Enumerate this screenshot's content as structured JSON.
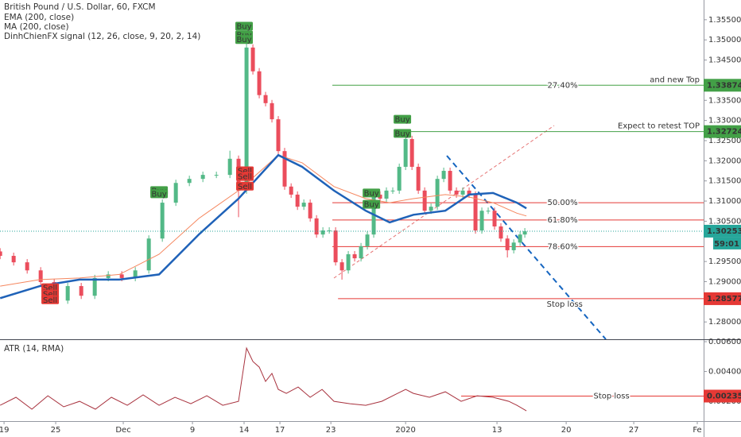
{
  "chart_data": [
    {
      "type": "candlestick",
      "title": "British Pound / U.S. Dollar, 60, FXCM",
      "signal_name": "DinhChienFX signal (12, 26, close, 9, 20, 2, 14)",
      "xlim": [
        -0.3,
        51.76
      ],
      "ylim": [
        1.2757,
        1.3599
      ],
      "yticks": [
        {
          "value": 1.355,
          "label": "1.35500"
        },
        {
          "value": 1.35,
          "label": "1.35000"
        },
        {
          "value": 1.345,
          "label": "1.34500"
        },
        {
          "value": 1.335,
          "label": "1.33500"
        },
        {
          "value": 1.33,
          "label": "1.33000"
        },
        {
          "value": 1.325,
          "label": "1.32500"
        },
        {
          "value": 1.32,
          "label": "1.32000"
        },
        {
          "value": 1.315,
          "label": "1.31500"
        },
        {
          "value": 1.31,
          "label": "1.31000"
        },
        {
          "value": 1.305,
          "label": "1.30500"
        },
        {
          "value": 1.295,
          "label": "1.29500"
        },
        {
          "value": 1.29,
          "label": "1.29000"
        },
        {
          "value": 1.28,
          "label": "1.28000"
        }
      ],
      "candle_colors": {
        "up": "#53b987",
        "down": "#eb4d5c"
      },
      "x": [
        -0.29,
        0.71,
        1.71,
        2.71,
        3.71,
        4.71,
        5.71,
        6.71,
        7.71,
        8.71,
        9.71,
        10.71,
        11.71,
        12.71,
        13.71,
        14.71,
        15.71,
        16.71,
        17.35,
        17.94,
        18.41,
        18.88,
        19.35,
        19.82,
        20.29,
        20.76,
        21.24,
        21.71,
        22.18,
        22.65,
        23.12,
        23.59,
        24.06,
        24.53,
        25,
        25.47,
        25.94,
        26.41,
        26.88,
        27.35,
        27.82,
        28.29,
        28.76,
        29.24,
        29.71,
        30.18,
        30.65,
        31.12,
        31.59,
        32.06,
        32.53,
        33,
        33.47,
        33.94,
        34.41,
        34.88,
        35.35,
        35.82,
        36.29,
        36.76,
        37.24,
        37.71,
        38.18,
        38.53
      ],
      "open": [
        1.2975,
        1.2964,
        1.2948,
        1.2928,
        1.2899,
        1.2853,
        1.2889,
        1.2865,
        1.2909,
        1.2918,
        1.2909,
        1.2928,
        1.3007,
        1.3096,
        1.3145,
        1.3155,
        1.3165,
        1.3165,
        1.3205,
        1.3126,
        1.3481,
        1.3422,
        1.3363,
        1.3343,
        1.3303,
        1.3224,
        1.3136,
        1.3116,
        1.3086,
        1.3096,
        1.3057,
        1.3017,
        1.3027,
        1.3027,
        1.2948,
        1.2928,
        1.2968,
        1.2958,
        1.2988,
        1.3017,
        1.3116,
        1.3106,
        1.3126,
        1.3126,
        1.3185,
        1.3254,
        1.3185,
        1.3126,
        1.3076,
        1.3086,
        1.3155,
        1.3175,
        1.3126,
        1.3116,
        1.3126,
        1.3116,
        1.3027,
        1.3076,
        1.3076,
        1.3037,
        1.3007,
        1.2978,
        1.2997,
        1.3017
      ],
      "high": [
        1.2983,
        1.2972,
        1.2956,
        1.2936,
        1.2907,
        1.2897,
        1.2897,
        1.2917,
        1.2926,
        1.2926,
        1.2936,
        1.3015,
        1.3104,
        1.3153,
        1.3163,
        1.3173,
        1.3173,
        1.3225,
        1.3213,
        1.3493,
        1.3489,
        1.343,
        1.3371,
        1.3351,
        1.3311,
        1.3232,
        1.3144,
        1.3124,
        1.3104,
        1.3104,
        1.3065,
        1.3035,
        1.3035,
        1.3035,
        1.2956,
        1.2976,
        1.2976,
        1.2996,
        1.3025,
        1.3124,
        1.3124,
        1.3134,
        1.3134,
        1.3193,
        1.3275,
        1.3262,
        1.3193,
        1.3134,
        1.3094,
        1.3163,
        1.3183,
        1.3183,
        1.3134,
        1.3134,
        1.3134,
        1.3124,
        1.3084,
        1.3084,
        1.3084,
        1.3045,
        1.3015,
        1.3005,
        1.3025,
        1.3033
      ],
      "low": [
        1.2956,
        1.294,
        1.292,
        1.2891,
        1.2845,
        1.2845,
        1.2857,
        1.2857,
        1.2901,
        1.2901,
        1.2901,
        1.292,
        1.2999,
        1.3088,
        1.3137,
        1.3147,
        1.3157,
        1.3157,
        1.306,
        1.3118,
        1.3414,
        1.3355,
        1.3335,
        1.3295,
        1.3216,
        1.3128,
        1.3108,
        1.3078,
        1.3078,
        1.3049,
        1.3009,
        1.3009,
        1.3019,
        1.294,
        1.2905,
        1.292,
        1.295,
        1.295,
        1.298,
        1.3009,
        1.3098,
        1.3098,
        1.3118,
        1.3118,
        1.3177,
        1.3177,
        1.3118,
        1.3068,
        1.3068,
        1.3078,
        1.3147,
        1.3118,
        1.3108,
        1.3108,
        1.3108,
        1.3019,
        1.3019,
        1.3068,
        1.3029,
        1.2999,
        1.296,
        1.297,
        1.2989,
        1.3009
      ],
      "close": [
        1.2964,
        1.2948,
        1.2928,
        1.2899,
        1.2853,
        1.2889,
        1.2865,
        1.2909,
        1.2918,
        1.2909,
        1.2928,
        1.3007,
        1.3096,
        1.3145,
        1.3155,
        1.3165,
        1.3165,
        1.3205,
        1.3126,
        1.3481,
        1.3422,
        1.3363,
        1.3343,
        1.3303,
        1.3224,
        1.3136,
        1.3116,
        1.3086,
        1.3096,
        1.3057,
        1.3017,
        1.3027,
        1.3027,
        1.2948,
        1.2928,
        1.2968,
        1.2958,
        1.2988,
        1.3017,
        1.3116,
        1.3106,
        1.3126,
        1.3126,
        1.3185,
        1.3254,
        1.3185,
        1.3126,
        1.3076,
        1.3086,
        1.3155,
        1.3175,
        1.3126,
        1.3116,
        1.3126,
        1.3116,
        1.3027,
        1.3076,
        1.3076,
        1.3037,
        1.3007,
        1.2978,
        1.2997,
        1.3017,
        1.3025
      ],
      "series": [
        {
          "name": "EMA (200, close)",
          "color": "#f5875f",
          "width": 1,
          "x": [
            -0.29,
            2.65,
            5.59,
            8.53,
            11.47,
            14.41,
            17.35,
            20.29,
            22.06,
            24.41,
            26.76,
            28.53,
            30.29,
            32.65,
            34.41,
            36.18,
            37.94,
            38.65
          ],
          "values": [
            1.2889,
            1.2905,
            1.2909,
            1.2918,
            1.2968,
            1.3057,
            1.3126,
            1.3214,
            1.3195,
            1.3136,
            1.3106,
            1.3096,
            1.3106,
            1.3116,
            1.311,
            1.3096,
            1.307,
            1.3063
          ]
        },
        {
          "name": "MA (200, close)",
          "color": "#1f62b8",
          "width": 2.5,
          "x": [
            -0.29,
            2.65,
            5.59,
            8.53,
            11.47,
            14.41,
            17.35,
            20.29,
            22.06,
            24.41,
            26.76,
            28.53,
            30.29,
            32.65,
            34.41,
            36.18,
            37.94,
            38.65
          ],
          "values": [
            1.2859,
            1.2889,
            1.2905,
            1.2905,
            1.2918,
            1.3017,
            1.3106,
            1.3214,
            1.3185,
            1.3126,
            1.3076,
            1.3047,
            1.3066,
            1.3076,
            1.3116,
            1.312,
            1.3096,
            1.3082
          ]
        }
      ],
      "signals": [
        {
          "label": "Buy",
          "x": 17.76,
          "y": 1.3534,
          "color": "#43a047"
        },
        {
          "label": "Buy",
          "x": 17.76,
          "y": 1.3512,
          "color": "#43a047"
        },
        {
          "label": "Buy",
          "x": 17.76,
          "y": 1.3501,
          "color": "#43a047"
        },
        {
          "label": "Sell",
          "x": 17.82,
          "y": 1.3175,
          "color": "#e53935"
        },
        {
          "label": "Sell",
          "x": 17.82,
          "y": 1.3161,
          "color": "#e53935"
        },
        {
          "label": "Sell",
          "x": 17.82,
          "y": 1.3137,
          "color": "#e53935"
        },
        {
          "label": "Buy",
          "x": 11.47,
          "y": 1.3126,
          "color": "#43a047"
        },
        {
          "label": "Buy",
          "x": 11.47,
          "y": 1.3118,
          "color": "#43a047"
        },
        {
          "label": "Sell",
          "x": 3.41,
          "y": 1.2885,
          "color": "#e53935"
        },
        {
          "label": "Sell",
          "x": 3.41,
          "y": 1.2869,
          "color": "#e53935"
        },
        {
          "label": "Sell",
          "x": 3.41,
          "y": 1.2855,
          "color": "#e53935"
        },
        {
          "label": "Buy",
          "x": 27.18,
          "y": 1.312,
          "color": "#43a047"
        },
        {
          "label": "Buy",
          "x": 27.18,
          "y": 1.3092,
          "color": "#43a047"
        },
        {
          "label": "Buy",
          "x": 29.47,
          "y": 1.3303,
          "color": "#43a047"
        },
        {
          "label": "Buy",
          "x": 29.47,
          "y": 1.3268,
          "color": "#43a047"
        }
      ],
      "levels": [
        {
          "value": 1.33874,
          "from": 24.29,
          "color": "#43a047",
          "label": "and new Top",
          "tag": "27.40%",
          "price_tag": true
        },
        {
          "value": 1.32724,
          "from": 29.53,
          "color": "#43a047",
          "label": "Expect to retest TOP",
          "price_tag": true
        },
        {
          "value": 1.3096,
          "from": 24.29,
          "color": "#e53935",
          "tag": "50.00%",
          "price_tag": false
        },
        {
          "value": 1.3053,
          "from": 24.29,
          "color": "#e53935",
          "tag": "61.80%",
          "price_tag": false
        },
        {
          "value": 1.2987,
          "from": 24.29,
          "color": "#e53935",
          "tag": "78.60%",
          "price_tag": false
        },
        {
          "value": 1.28577,
          "from": 24.71,
          "color": "#e53935",
          "tag": "Stop loss",
          "price_tag": true
        }
      ],
      "last": {
        "value": 1.30253,
        "countdown": "59:01",
        "color": "#26a69a"
      }
    },
    {
      "type": "line",
      "title": "ATR (14, RMA)",
      "color": "#a8323e",
      "xlim": [
        -0.3,
        51.76
      ],
      "ylim": [
        0.00067,
        0.00611
      ],
      "yticks": [
        {
          "value": 0.006,
          "label": "0.00600"
        },
        {
          "value": 0.004,
          "label": "0.00400"
        },
        {
          "value": 0.002,
          "label": "0.00200"
        }
      ],
      "xticks": [
        {
          "value": 0,
          "label": "19"
        },
        {
          "value": 3.82,
          "label": "25"
        },
        {
          "value": 8.82,
          "label": "Dec"
        },
        {
          "value": 13.94,
          "label": "9"
        },
        {
          "value": 17.76,
          "label": "14"
        },
        {
          "value": 20.41,
          "label": "17"
        },
        {
          "value": 24.18,
          "label": "23"
        },
        {
          "value": 29.71,
          "label": "2020"
        },
        {
          "value": 36.47,
          "label": "13"
        },
        {
          "value": 41.59,
          "label": "20"
        },
        {
          "value": 46.59,
          "label": "27"
        },
        {
          "value": 51.29,
          "label": "Fe"
        }
      ],
      "x": [
        -0.29,
        0.88,
        2.06,
        3.24,
        4.41,
        5.59,
        6.76,
        7.94,
        9.12,
        10.29,
        11.47,
        12.65,
        13.82,
        15,
        16.18,
        17.35,
        17.94,
        18.41,
        18.88,
        19.35,
        19.82,
        20.29,
        20.88,
        21.76,
        22.65,
        23.53,
        24.41,
        25.59,
        26.76,
        27.94,
        29.12,
        29.71,
        30.29,
        31.47,
        32.65,
        33.82,
        35,
        36.18,
        37.35,
        37.94,
        38.65
      ],
      "values": [
        0.00173,
        0.00227,
        0.00147,
        0.00237,
        0.00163,
        0.002,
        0.00147,
        0.00227,
        0.00173,
        0.00243,
        0.00173,
        0.00227,
        0.00184,
        0.00237,
        0.00173,
        0.002,
        0.00557,
        0.00467,
        0.00429,
        0.00333,
        0.00387,
        0.0028,
        0.00253,
        0.00296,
        0.00227,
        0.0028,
        0.002,
        0.00184,
        0.00173,
        0.002,
        0.00253,
        0.0028,
        0.00253,
        0.00227,
        0.00264,
        0.002,
        0.00237,
        0.00227,
        0.002,
        0.00173,
        0.00136
      ],
      "levels": [
        {
          "value": 0.00235,
          "from": 33.82,
          "color": "#e53935",
          "tag": "Stop loss",
          "price_tag": true
        }
      ]
    }
  ]
}
